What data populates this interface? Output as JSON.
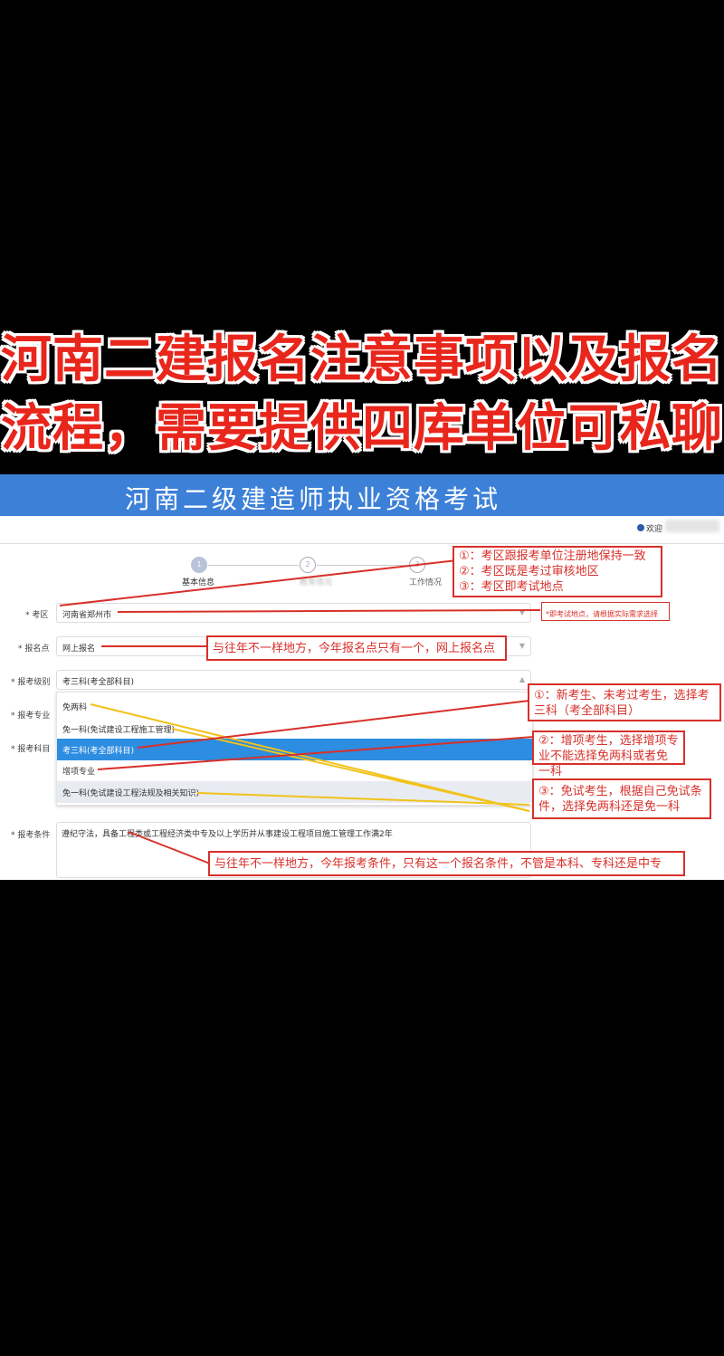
{
  "headline": {
    "line1": "河南二建报名注意事项以及报名",
    "line2": "流程，需要提供四库单位可私聊"
  },
  "app": {
    "title": "河南二级建造师执业资格考试",
    "welcome": "欢迎"
  },
  "steps": [
    {
      "num": "1",
      "label": "基本信息"
    },
    {
      "num": "2",
      "label": "教育情况"
    },
    {
      "num": "3",
      "label": "工作情况"
    }
  ],
  "form": {
    "exam_area": {
      "label": "* 考区",
      "value": "河南省郑州市",
      "hint": "*即考试地点，请根据实际需求选择"
    },
    "reg_point": {
      "label": "* 报名点",
      "value": "网上报名"
    },
    "level": {
      "label": "* 报考级别",
      "value": "考三科(考全部科目)",
      "options": [
        "免两科",
        "免一科(免试建设工程施工管理)",
        "考三科(考全部科目)",
        "增项专业",
        "免一科(免试建设工程法规及相关知识)"
      ]
    },
    "major": {
      "label": "* 报考专业"
    },
    "subject": {
      "label": "* 报考科目"
    },
    "condition": {
      "label": "* 报考条件",
      "value": "遵纪守法，具备工程类或工程经济类中专及以上学历并从事建设工程项目施工管理工作满2年"
    }
  },
  "annotations": {
    "area": [
      "①：考区跟报考单位注册地保持一致",
      "②：考区既是考过审核地区",
      "③：考区即考试地点"
    ],
    "reg_point": "与往年不一样地方，今年报名点只有一个，网上报名点",
    "new": "①：新考生、未考过考生，选择考三科（考全部科目）",
    "add": "②：增项考生，选择增项专业不能选择免两科或者免一科",
    "exempt": "③：免试考生，根据自己免试条件，选择免两科还是免一科",
    "condition": "与往年不一样地方，今年报考条件，只有这一个报名条件，不管是本科、专科还是中专"
  },
  "colors": {
    "accent": "#3c80d8",
    "annotation": "#d8302a",
    "arrow_yellow": "#f2c21b",
    "selected": "#2d8de0"
  }
}
